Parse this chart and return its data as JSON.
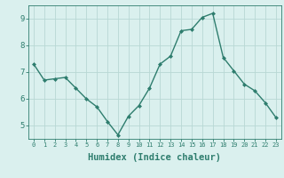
{
  "x": [
    0,
    1,
    2,
    3,
    4,
    5,
    6,
    7,
    8,
    9,
    10,
    11,
    12,
    13,
    14,
    15,
    16,
    17,
    18,
    19,
    20,
    21,
    22,
    23
  ],
  "y": [
    7.3,
    6.7,
    6.75,
    6.8,
    6.4,
    6.0,
    5.7,
    5.15,
    4.65,
    5.35,
    5.75,
    6.4,
    7.3,
    7.6,
    8.55,
    8.6,
    9.05,
    9.2,
    7.55,
    7.05,
    6.55,
    6.3,
    5.85,
    5.3
  ],
  "line_color": "#2e7d6e",
  "marker": "D",
  "markersize": 2.0,
  "linewidth": 1.0,
  "xlabel": "Humidex (Indice chaleur)",
  "xlabel_fontsize": 7.5,
  "bg_color": "#daf0ee",
  "grid_color": "#b8d8d4",
  "tick_color": "#2e7d6e",
  "label_color": "#2e7d6e",
  "ylim": [
    4.5,
    9.5
  ],
  "xlim": [
    -0.5,
    23.5
  ],
  "yticks": [
    5,
    6,
    7,
    8,
    9
  ],
  "xticks": [
    0,
    1,
    2,
    3,
    4,
    5,
    6,
    7,
    8,
    9,
    10,
    11,
    12,
    13,
    14,
    15,
    16,
    17,
    18,
    19,
    20,
    21,
    22,
    23
  ]
}
